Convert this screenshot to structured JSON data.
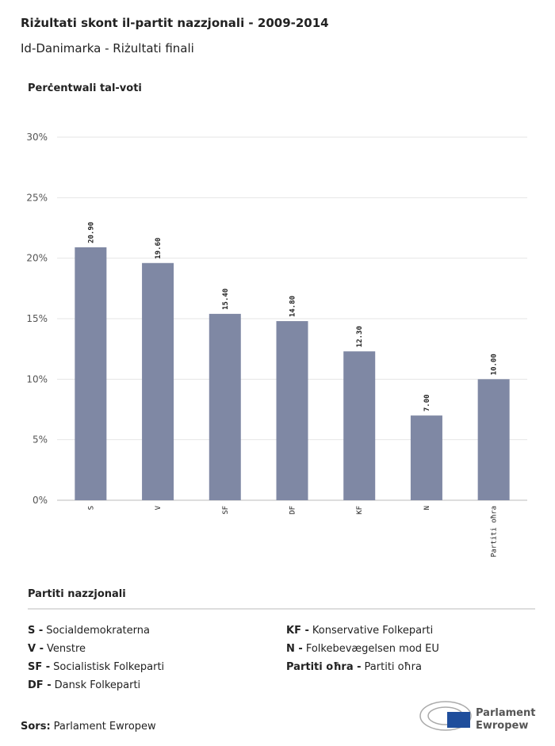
{
  "chart_data": {
    "type": "bar",
    "title": "Riżultati skont il-partit nazzjonali - 2009-2014",
    "subtitle": "Id-Danimarka - Riżultati finali",
    "y_label": "Perċentwali tal-voti",
    "categories": [
      "S",
      "V",
      "SF",
      "DF",
      "KF",
      "N",
      "Partiti oħra"
    ],
    "values": [
      20.9,
      19.6,
      15.4,
      14.8,
      12.3,
      7,
      10
    ],
    "value_labels": [
      "20.90",
      "19.60",
      "15.40",
      "14.80",
      "12.30",
      "7.00",
      "10.00"
    ],
    "color": "#7f88a4",
    "ylim": [
      0,
      30
    ],
    "yticks": [
      {
        "value": 0,
        "label": "0%"
      },
      {
        "value": 5,
        "label": "5%"
      },
      {
        "value": 10,
        "label": "10%"
      },
      {
        "value": 15,
        "label": "15%"
      },
      {
        "value": 20,
        "label": "20%"
      },
      {
        "value": 25,
        "label": "25%"
      },
      {
        "value": 30,
        "label": "30%"
      }
    ],
    "grid": true
  },
  "legend": {
    "title": "Partiti nazzjonali",
    "entries": [
      {
        "abbr": "S -",
        "name": "Socialdemokraterna"
      },
      {
        "abbr": "V -",
        "name": "Venstre"
      },
      {
        "abbr": "SF -",
        "name": "Socialistisk Folkeparti"
      },
      {
        "abbr": "DF -",
        "name": "Dansk Folkeparti"
      },
      {
        "abbr": "KF -",
        "name": "Konservative Folkeparti"
      },
      {
        "abbr": "N -",
        "name": "Folkebevægelsen mod EU"
      },
      {
        "abbr": "Partiti oħra -",
        "name": "Partiti oħra"
      }
    ]
  },
  "source": {
    "label": "Sors:",
    "text": "Parlament Ewropew"
  },
  "logo": {
    "line1": "Parlament",
    "line2": "Ewropew"
  }
}
